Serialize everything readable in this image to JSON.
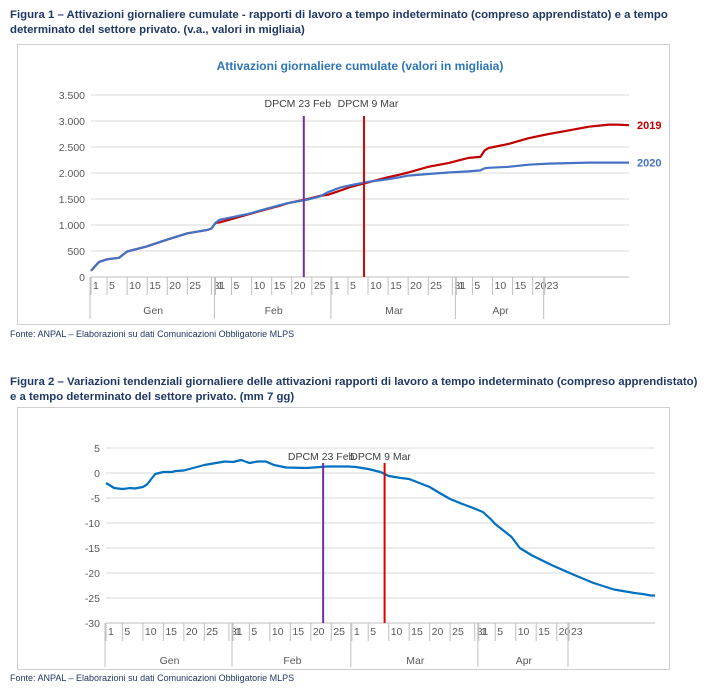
{
  "figure1": {
    "caption": "Figura 1 – Attivazioni giornaliere cumulate - rapporti di lavoro a tempo indeterminato (compreso apprendistato) e a tempo determinato del settore privato. (v.a., valori in migliaia)",
    "source": "Fonte: ANPAL – Elaborazioni su dati Comunicazioni Obbligatorie MLPS"
  },
  "figure2": {
    "caption": "Figura 2 – Variazioni tendenziali giornaliere delle attivazioni rapporti di lavoro a tempo indeterminato (compreso apprendistato) e a tempo determinato del settore privato. (mm 7 gg)",
    "source": "Fonte: ANPAL – Elaborazioni su dati Comunicazioni Obbligatorie MLPS"
  },
  "chart_data": [
    {
      "type": "line",
      "title": "Attivazioni giornaliere cumulate (valori in migliaia)",
      "xlabel": "",
      "ylabel": "",
      "ylim": [
        0,
        3500
      ],
      "yticks": [
        0,
        500,
        1000,
        1500,
        2000,
        2500,
        3000,
        3500
      ],
      "ytick_labels": [
        "0",
        "500",
        "1.000",
        "1.500",
        "2.000",
        "2.500",
        "3.000",
        "3.500"
      ],
      "x_tick_labels": [
        "1",
        "5",
        "10",
        "15",
        "20",
        "25",
        "31",
        "1",
        "5",
        "10",
        "15",
        "20",
        "25",
        "1",
        "5",
        "10",
        "15",
        "20",
        "25",
        "31",
        "1",
        "5",
        "10",
        "15",
        "20",
        "23"
      ],
      "months": [
        "Gen",
        "Feb",
        "Mar",
        "Apr"
      ],
      "grid": true,
      "vlines": [
        {
          "label": "DPCM 23 Feb",
          "day": 54,
          "color": "#7030a0"
        },
        {
          "label": "DPCM 9 Mar",
          "day": 69,
          "color": "#e00000"
        }
      ],
      "series": [
        {
          "name": "2019",
          "color": "#c00000",
          "x": [
            1,
            3,
            5,
            8,
            10,
            15,
            20,
            25,
            30,
            31,
            32,
            33,
            40,
            45,
            48,
            50,
            55,
            58,
            60,
            63,
            66,
            70,
            75,
            78,
            80,
            85,
            90,
            95,
            98,
            99,
            100,
            105,
            110,
            115,
            120,
            125,
            130,
            132,
            135
          ],
          "y": [
            120,
            290,
            340,
            370,
            490,
            590,
            720,
            840,
            905,
            930,
            1040,
            1050,
            1200,
            1310,
            1370,
            1420,
            1500,
            1560,
            1580,
            1660,
            1740,
            1820,
            1920,
            1970,
            2010,
            2120,
            2190,
            2290,
            2310,
            2430,
            2480,
            2560,
            2670,
            2750,
            2820,
            2890,
            2930,
            2930,
            2920
          ]
        },
        {
          "name": "2020",
          "color": "#4472c4",
          "x": [
            1,
            3,
            5,
            8,
            10,
            15,
            20,
            25,
            30,
            31,
            32,
            33,
            40,
            45,
            48,
            50,
            55,
            58,
            60,
            63,
            66,
            70,
            75,
            78,
            80,
            85,
            90,
            95,
            98,
            99,
            100,
            105,
            110,
            115,
            120,
            125,
            130,
            132,
            135
          ],
          "y": [
            120,
            290,
            340,
            370,
            490,
            590,
            720,
            840,
            905,
            930,
            1040,
            1100,
            1210,
            1320,
            1380,
            1420,
            1490,
            1550,
            1630,
            1720,
            1770,
            1830,
            1880,
            1920,
            1950,
            1980,
            2010,
            2030,
            2050,
            2090,
            2100,
            2120,
            2160,
            2180,
            2190,
            2200,
            2200,
            2200,
            2200
          ]
        }
      ]
    },
    {
      "type": "line",
      "title": "",
      "xlabel": "",
      "ylabel": "",
      "ylim": [
        -30,
        5
      ],
      "yticks": [
        -30,
        -25,
        -20,
        -15,
        -10,
        -5,
        0,
        5
      ],
      "ytick_labels": [
        "-30",
        "-25",
        "-20",
        "-15",
        "-10",
        "-5",
        "0",
        "5"
      ],
      "x_tick_labels": [
        "1",
        "5",
        "10",
        "15",
        "20",
        "25",
        "31",
        "1",
        "5",
        "10",
        "15",
        "20",
        "25",
        "1",
        "5",
        "10",
        "15",
        "20",
        "25",
        "31",
        "1",
        "5",
        "10",
        "15",
        "20",
        "23"
      ],
      "months": [
        "Gen",
        "Feb",
        "Mar",
        "Apr"
      ],
      "grid": true,
      "vlines": [
        {
          "label": "DPCM 23 Feb",
          "day": 54,
          "color": "#7030a0"
        },
        {
          "label": "DPCM 9 Mar",
          "day": 69,
          "color": "#e00000"
        }
      ],
      "series": [
        {
          "name": "",
          "color": "#0070c0",
          "x": [
            1,
            3,
            5,
            7,
            8,
            10,
            11,
            13,
            15,
            17,
            18,
            20,
            25,
            30,
            32,
            34,
            36,
            38,
            40,
            42,
            45,
            50,
            55,
            57,
            60,
            62,
            65,
            68,
            70,
            73,
            75,
            80,
            82,
            85,
            88,
            90,
            93,
            95,
            96,
            100,
            102,
            105,
            110,
            115,
            120,
            125,
            130,
            132,
            134,
            135
          ],
          "y": [
            -2,
            -3,
            -3.2,
            -3,
            -3.1,
            -2.8,
            -2.3,
            -0.2,
            0.2,
            0.2,
            0.4,
            0.5,
            1.6,
            2.3,
            2.2,
            2.6,
            2.0,
            2.3,
            2.3,
            1.6,
            1.1,
            1.0,
            1.3,
            1.3,
            1.3,
            1.2,
            0.8,
            0.2,
            -0.6,
            -1.0,
            -1.2,
            -2.8,
            -3.8,
            -5.2,
            -6.2,
            -6.8,
            -7.8,
            -9.3,
            -10.2,
            -12.8,
            -15.0,
            -16.5,
            -18.5,
            -20.3,
            -22.0,
            -23.3,
            -24.0,
            -24.2,
            -24.5,
            -24.5
          ]
        }
      ]
    }
  ]
}
